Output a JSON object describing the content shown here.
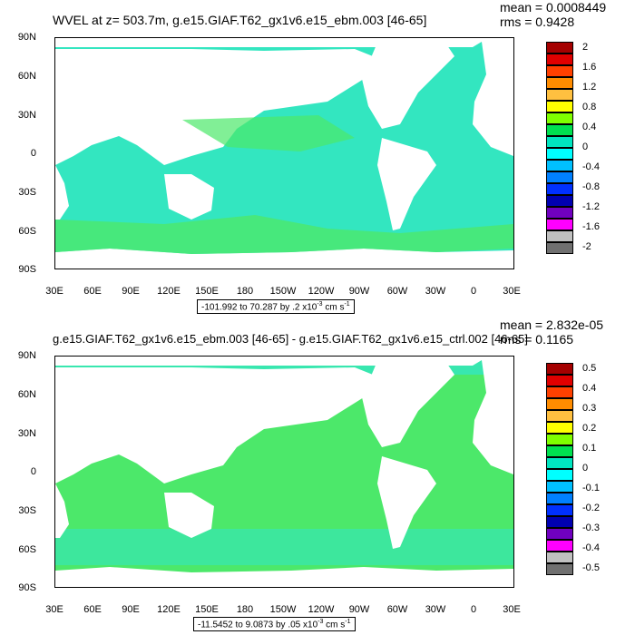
{
  "panels": [
    {
      "title": "WVEL at z= 503.7m, g.e15.GIAF.T62_gx1v6.e15_ebm.003 [46-65]",
      "mean": "mean = 0.0008449",
      "rms": "rms = 0.9428",
      "range_text": "-101.992 to 70.287 by .2 x10",
      "range_exp": "-3",
      "range_unit": " cm s",
      "range_unit_exp": "-1",
      "colorbar_labels": [
        "2",
        "1.6",
        "1.2",
        "0.8",
        "0.4",
        "0",
        "-0.4",
        "-0.8",
        "-1.2",
        "-1.6",
        "-2"
      ],
      "colorbar_colors": [
        "#a50000",
        "#e00000",
        "#ff4000",
        "#ff8c00",
        "#ffc040",
        "#ffff00",
        "#7fff00",
        "#00e050",
        "#00e5c0",
        "#00ffff",
        "#00c0ff",
        "#0080ff",
        "#0030ff",
        "#0000b0",
        "#7000c0",
        "#ff00ff",
        "#c0c0c0",
        "#707070"
      ]
    },
    {
      "title": "g.e15.GIAF.T62_gx1v6.e15_ebm.003 [46-65] - g.e15.GIAF.T62_gx1v6.e15_ctrl.002 [46-65]",
      "mean": "mean = 2.832e-05",
      "rms": "rms = 0.1165",
      "range_text": "-11.5452 to 9.0873 by .05 x10",
      "range_exp": "-3",
      "range_unit": " cm s",
      "range_unit_exp": "-1",
      "colorbar_labels": [
        "0.5",
        "0.4",
        "0.3",
        "0.2",
        "0.1",
        "0",
        "-0.1",
        "-0.2",
        "-0.3",
        "-0.4",
        "-0.5"
      ],
      "colorbar_colors": [
        "#a50000",
        "#e00000",
        "#ff4000",
        "#ff8c00",
        "#ffc040",
        "#ffff00",
        "#7fff00",
        "#00e050",
        "#00e5c0",
        "#00ffff",
        "#00c0ff",
        "#0080ff",
        "#0030ff",
        "#0000b0",
        "#7000c0",
        "#ff00ff",
        "#c0c0c0",
        "#707070"
      ]
    }
  ],
  "lat_labels": [
    "90N",
    "60N",
    "30N",
    "0",
    "30S",
    "60S",
    "90S"
  ],
  "lon_labels": [
    "30E",
    "60E",
    "90E",
    "120E",
    "150E",
    "180",
    "150W",
    "120W",
    "90W",
    "60W",
    "30W",
    "0",
    "30E"
  ],
  "colors": {
    "ocean_main": "#33e6c0",
    "ocean_green": "#4ce86a",
    "land": "#ffffff"
  }
}
